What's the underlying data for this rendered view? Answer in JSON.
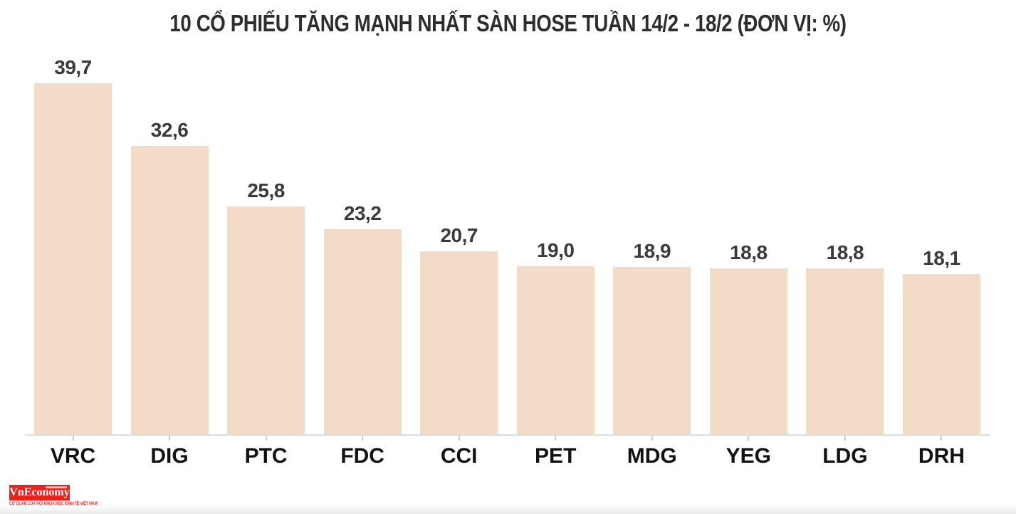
{
  "chart_data": {
    "type": "bar",
    "title": "10 CỔ PHIẾU TĂNG MẠNH NHẤT SÀN HOSE TUẦN 14/2 - 18/2 (ĐƠN VỊ: %)",
    "categories": [
      "VRC",
      "DIG",
      "PTC",
      "FDC",
      "CCI",
      "PET",
      "MDG",
      "YEG",
      "LDG",
      "DRH"
    ],
    "values": [
      39.7,
      32.6,
      25.8,
      23.2,
      20.7,
      19.0,
      18.9,
      18.8,
      18.8,
      18.1
    ],
    "value_labels": [
      "39,7",
      "32,6",
      "25,8",
      "23,2",
      "20,7",
      "19,0",
      "18,9",
      "18,8",
      "18,8",
      "18,1"
    ],
    "xlabel": "",
    "ylabel": "",
    "ylim": [
      0,
      39.7
    ],
    "grid": false,
    "legend": false,
    "yaxis_visible": false,
    "bar_color": "#f3dcc7",
    "value_label_color": "#3a3a3a",
    "category_color": "#121212",
    "title_color": "#2d2d2d",
    "axis_color": "#dcdcdc"
  },
  "footer": {
    "logo_text": "VnEconomy",
    "logo_tagline": "CƠ QUAN CỦA HỘI KHOA HỌC KINH TẾ VIỆT NAM",
    "logo_bg_color": "#e9221e",
    "logo_text_color": "#ffffff"
  }
}
